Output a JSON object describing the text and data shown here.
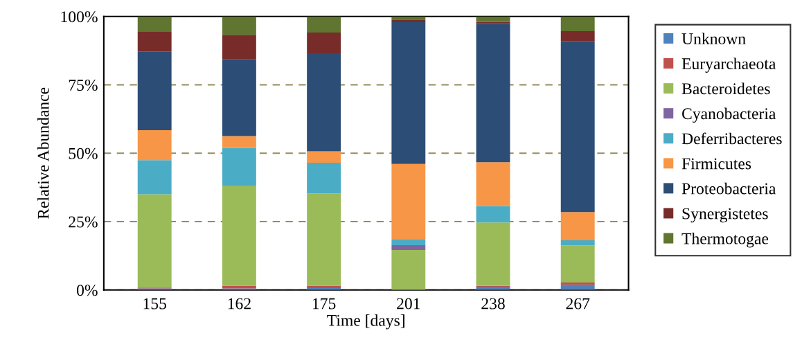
{
  "chart_data": {
    "type": "bar",
    "stacked": true,
    "xlabel": "Time [days]",
    "ylabel": "Relative Abundance",
    "categories": [
      "155",
      "162",
      "175",
      "201",
      "238",
      "267"
    ],
    "series": [
      {
        "name": "Unknown",
        "color": "#4f81bd",
        "values": [
          0.6,
          0.6,
          0.7,
          0,
          1.2,
          1.9
        ]
      },
      {
        "name": "Euryarchaeota",
        "color": "#c0504d",
        "values": [
          0.3,
          1.0,
          0.9,
          0,
          0.3,
          0.8
        ]
      },
      {
        "name": "Bacteroidetes",
        "color": "#9bbb59",
        "values": [
          34.1,
          36.6,
          33.7,
          14.6,
          23.2,
          13.6
        ]
      },
      {
        "name": "Cyanobacteria",
        "color": "#8064a2",
        "values": [
          0,
          0,
          0,
          1.8,
          0,
          0
        ]
      },
      {
        "name": "Deferribacteres",
        "color": "#4bacc6",
        "values": [
          12.5,
          13.8,
          11.2,
          2.0,
          6.0,
          1.9
        ]
      },
      {
        "name": "Firmicutes",
        "color": "#f79646",
        "values": [
          10.9,
          4.3,
          4.2,
          27.7,
          16.0,
          10.3
        ]
      },
      {
        "name": "Proteobacteria",
        "color": "#2c4d75",
        "values": [
          28.8,
          28.0,
          35.8,
          51.8,
          50.6,
          62.5
        ]
      },
      {
        "name": "Synergistetes",
        "color": "#772c2a",
        "values": [
          7.2,
          9.0,
          7.6,
          1.0,
          0.7,
          3.6
        ]
      },
      {
        "name": "Thermotogae",
        "color": "#5f7530",
        "values": [
          5.6,
          6.7,
          5.9,
          1.1,
          2.0,
          5.4
        ]
      }
    ],
    "ylim": [
      0,
      100
    ],
    "yticks": [
      {
        "value": 0,
        "label": "0%"
      },
      {
        "value": 25,
        "label": "25%"
      },
      {
        "value": 50,
        "label": "50%"
      },
      {
        "value": 75,
        "label": "75%"
      },
      {
        "value": 100,
        "label": "100%"
      }
    ],
    "grid": "y",
    "legend": "right"
  }
}
